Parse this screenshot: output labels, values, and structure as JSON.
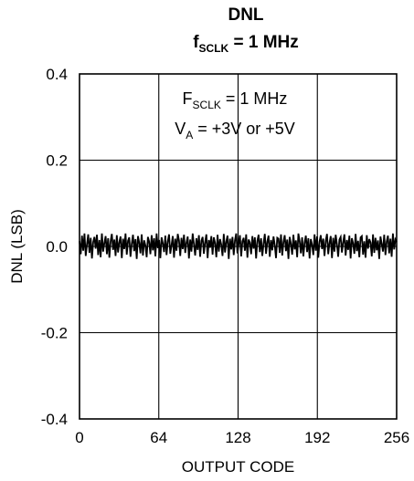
{
  "chart_data": {
    "type": "line",
    "title": "DNL",
    "subtitle": {
      "main": "f",
      "sub": "SCLK",
      "rest": " = 1 MHz"
    },
    "xlabel": "OUTPUT CODE",
    "ylabel": "DNL (LSB)",
    "xlim": [
      0,
      256
    ],
    "ylim": [
      -0.4,
      0.4
    ],
    "x_ticks": [
      0,
      64,
      128,
      192,
      256
    ],
    "y_ticks": [
      -0.4,
      -0.2,
      0.0,
      0.2,
      0.4
    ],
    "y_tick_labels": [
      "-0.4",
      "-0.2",
      "0.0",
      "0.2",
      "0.4"
    ],
    "grid": true,
    "annotations": [
      {
        "main": "F",
        "sub": "SCLK",
        "rest": " = 1 MHz"
      },
      {
        "main": "V",
        "sub": "A",
        "rest": " = +3V or +5V"
      }
    ],
    "series": [
      {
        "values": [
          0.012,
          -0.018,
          0.025,
          -0.01,
          0.03,
          -0.022,
          0.005,
          0.028,
          -0.015,
          0.02,
          -0.028,
          0.01,
          0.022,
          -0.005,
          0.027,
          -0.02,
          0.015,
          -0.025,
          0.03,
          -0.012,
          0.008,
          0.024,
          -0.018,
          0.019,
          -0.026,
          0.012,
          0.029,
          -0.008,
          0.016,
          -0.022,
          0.026,
          -0.014,
          0.01,
          0.023,
          -0.027,
          0.018,
          -0.006,
          0.03,
          -0.019,
          0.013,
          0.021,
          -0.024,
          0.006,
          0.027,
          -0.011,
          0.017,
          -0.029,
          0.024,
          0.009,
          -0.016,
          0.028,
          -0.021,
          0.014,
          0.002,
          -0.025,
          0.022,
          0.011,
          -0.018,
          0.026,
          -0.009,
          0.019,
          -0.023,
          0.03,
          -0.004,
          0.015,
          -0.027,
          0.021,
          0.007,
          -0.013,
          0.025,
          -0.02,
          0.012,
          0.028,
          -0.017,
          0.003,
          0.024,
          -0.026,
          0.018,
          -0.01,
          0.029,
          0.014,
          -0.022,
          0.02,
          -0.006,
          0.027,
          -0.015,
          0.009,
          0.023,
          -0.028,
          0.016,
          -0.012,
          0.03,
          0.005,
          -0.021,
          0.019,
          -0.008,
          0.026,
          -0.024,
          0.013,
          0.022,
          -0.017,
          0.01,
          0.028,
          -0.027,
          0.015,
          -0.003,
          0.024,
          -0.019,
          0.021,
          0.008,
          -0.025,
          0.027,
          -0.012,
          0.017,
          0.004,
          -0.022,
          0.029,
          -0.014,
          0.011,
          0.025,
          -0.029,
          0.018,
          -0.007,
          0.022,
          -0.02,
          0.014,
          0.03,
          -0.016,
          0.006,
          0.026,
          -0.023,
          0.012,
          0.02,
          -0.01,
          0.028,
          -0.026,
          0.016,
          0.009,
          -0.018,
          0.024,
          -0.005,
          0.021,
          -0.028,
          0.013,
          0.027,
          -0.013,
          0.019,
          -0.022,
          0.007,
          0.029,
          -0.017,
          0.011,
          0.025,
          -0.024,
          0.015,
          -0.009,
          0.023,
          0.003,
          -0.027,
          0.02,
          0.018,
          -0.015,
          0.028,
          -0.021,
          0.01,
          0.026,
          -0.011,
          0.016,
          -0.029,
          0.022,
          0.006,
          -0.019,
          0.027,
          -0.007,
          0.014,
          -0.025,
          0.03,
          0.012,
          -0.016,
          0.021,
          -0.023,
          0.009,
          0.025,
          -0.013,
          0.019,
          -0.028,
          0.017,
          0.004,
          -0.02,
          0.028,
          -0.01,
          0.023,
          -0.026,
          0.011,
          0.026,
          -0.006,
          0.018,
          -0.022,
          0.013,
          0.029,
          -0.018,
          0.008,
          0.024,
          -0.027,
          0.02,
          -0.012,
          0.027,
          0.005,
          -0.024,
          0.016,
          0.022,
          -0.014,
          0.01,
          0.028,
          -0.021,
          0.015,
          -0.008,
          0.025,
          -0.028,
          0.019,
          0.007,
          -0.017,
          0.029,
          -0.011,
          0.013,
          -0.025,
          0.021,
          0.024,
          -0.019,
          0.012,
          -0.026,
          0.026,
          -0.005,
          0.017,
          0.009,
          -0.023,
          0.028,
          -0.015,
          0.02,
          -0.009,
          0.014,
          -0.029,
          0.023,
          0.006,
          -0.012,
          0.027,
          -0.02,
          0.011,
          0.025,
          -0.016,
          0.018,
          -0.024,
          0.03,
          -0.007,
          0.016,
          0.01
        ]
      }
    ]
  }
}
